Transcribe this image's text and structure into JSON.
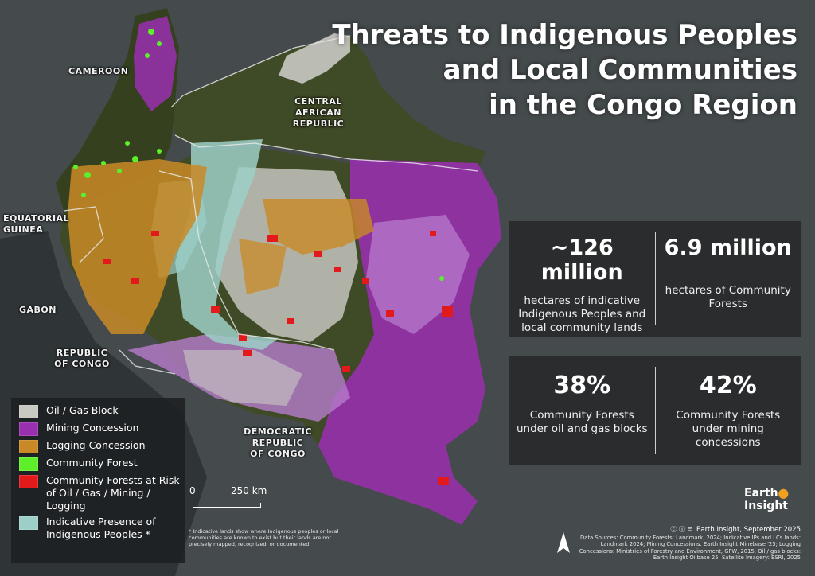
{
  "title": {
    "line1": "Threats to Indigenous Peoples",
    "line2": "and Local Communities",
    "line3": "in the Congo Region"
  },
  "countries": {
    "cameroon": "CAMEROON",
    "car_line1": "CENTRAL",
    "car_line2": "AFRICAN",
    "car_line3": "REPUBLIC",
    "eq_guinea_line1": "EQUATORIAL",
    "eq_guinea_line2": "GUINEA",
    "gabon": "GABON",
    "roc_line1": "REPUBLIC",
    "roc_line2": "OF CONGO",
    "drc_line1": "DEMOCRATIC",
    "drc_line2": "REPUBLIC",
    "drc_line3": "OF CONGO"
  },
  "stats": {
    "ipl_lands_value": "~126 million",
    "ipl_lands_text": "hectares of indicative Indigenous Peoples and local community lands",
    "cf_area_value": "6.9 million",
    "cf_area_text": "hectares of Community Forests",
    "cf_oil_value": "38%",
    "cf_oil_text": "Community Forests under oil and gas blocks",
    "cf_mining_value": "42%",
    "cf_mining_text": "Community Forests under mining concessions"
  },
  "legend": {
    "items": [
      {
        "label": "Oil / Gas Block",
        "color": "#c9c9c4"
      },
      {
        "label": "Mining Concession",
        "color": "#9a2fb0"
      },
      {
        "label": "Logging Concession",
        "color": "#c98a26"
      },
      {
        "label": "Community Forest",
        "color": "#5df02a"
      },
      {
        "label": "Community Forests at Risk of Oil / Gas / Mining / Logging",
        "color": "#e31a1c"
      },
      {
        "label": "Indicative Presence of Indigenous Peoples *",
        "color": "#9ccfc7"
      }
    ]
  },
  "scale": {
    "start": "0",
    "end": "250 km"
  },
  "footnote": "* Indicative lands show where Indigenous peoples or local communities are known to exist but their lands are not precisely mapped, recognized, or documented.",
  "logo": {
    "line1": "Earth",
    "line2": "Insight"
  },
  "credit": "Earth Insight, September 2025",
  "sources": "Data Sources: Community Forests: Landmark, 2024; Indicative IPs and LCs lands: Landmark 2024; Mining Concessions: Earth Insight Minebase '25; Logging Concessions: Ministries of Forestry and Environment, GFW, 2015; Oil / gas blocks: Earth Insight Oilbase 25; Satellite Imagery: ESRI, 2025",
  "colors": {
    "background": "#3d4346",
    "forest": "#3f4a26",
    "oil_gas": "#c9c9c4",
    "mining": "#9a2fb0",
    "mining_light": "#b77ccc",
    "logging": "#c98a26",
    "community_forest": "#5df02a",
    "at_risk": "#e31a1c",
    "indigenous": "#9ccfc7"
  }
}
